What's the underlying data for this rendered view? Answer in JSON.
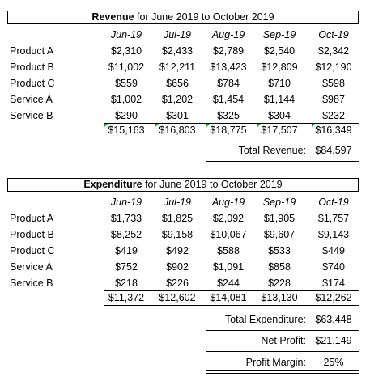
{
  "months": [
    "Jun-19",
    "Jul-19",
    "Aug-19",
    "Sep-19",
    "Oct-19"
  ],
  "revenue": {
    "title_bold": "Revenue",
    "title_rest": " for June 2019 to October 2019",
    "rows": [
      {
        "label": "Product A",
        "values": [
          "$2,310",
          "$2,433",
          "$2,789",
          "$2,540",
          "$2,342"
        ]
      },
      {
        "label": "Product B",
        "values": [
          "$11,002",
          "$12,211",
          "$13,423",
          "$12,809",
          "$12,190"
        ]
      },
      {
        "label": "Product C",
        "values": [
          "$559",
          "$656",
          "$784",
          "$710",
          "$598"
        ]
      },
      {
        "label": "Service A",
        "values": [
          "$1,002",
          "$1,202",
          "$1,454",
          "$1,144",
          "$987"
        ]
      },
      {
        "label": "Service B",
        "values": [
          "$290",
          "$301",
          "$325",
          "$304",
          "$232"
        ]
      }
    ],
    "totals": [
      "$15,163",
      "$16,803",
      "$18,775",
      "$17,507",
      "$16,349"
    ],
    "grand_label": "Total Revenue:",
    "grand_value": "$84,597"
  },
  "expenditure": {
    "title_bold": "Expenditure",
    "title_rest": " for June 2019 to October 2019",
    "rows": [
      {
        "label": "Product A",
        "values": [
          "$1,733",
          "$1,825",
          "$2,092",
          "$1,905",
          "$1,757"
        ]
      },
      {
        "label": "Product B",
        "values": [
          "$8,252",
          "$9,158",
          "$10,067",
          "$9,607",
          "$9,143"
        ]
      },
      {
        "label": "Product C",
        "values": [
          "$419",
          "$492",
          "$588",
          "$533",
          "$449"
        ]
      },
      {
        "label": "Service A",
        "values": [
          "$752",
          "$902",
          "$1,091",
          "$858",
          "$740"
        ]
      },
      {
        "label": "Service B",
        "values": [
          "$218",
          "$226",
          "$244",
          "$228",
          "$174"
        ]
      }
    ],
    "totals": [
      "$11,372",
      "$12,602",
      "$14,081",
      "$13,130",
      "$12,262"
    ],
    "grand_label": "Total Expenditure:",
    "grand_value": "$63,448"
  },
  "net_profit_label": "Net Profit:",
  "net_profit_value": "$21,149",
  "profit_margin_label": "Profit Margin:",
  "profit_margin_value": "25%",
  "colors": {
    "error_indicator": "#1f9a3a"
  }
}
